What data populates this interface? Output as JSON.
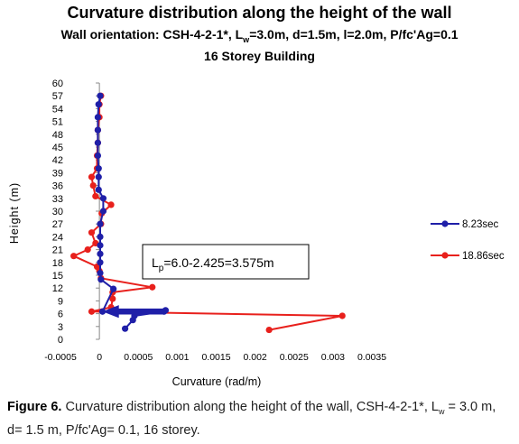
{
  "title": "Curvature distribution along the height of the wall",
  "subtitle_prefix": "Wall orientation: CSH-4-2-1*, L",
  "subtitle_sub": "w",
  "subtitle_suffix": "=3.0m, d=1.5m, l=2.0m, P/fc'Ag=0.1",
  "subtitle2": "16 Storey Building",
  "annotation_prefix": "L",
  "annotation_sub": "p",
  "annotation_suffix": "=6.0-2.425=3.575m",
  "caption": {
    "label": "Figure 6.",
    "text_a": " Curvature distribution along the height of the wall, CSH-4-2-1*, L",
    "text_sub": "w",
    "text_b": " = 3.0 m, d= 1.5 m, P/fc'Ag= 0.1, 16 storey."
  },
  "colors": {
    "series1": "#1f1fa8",
    "series2": "#e8201c"
  },
  "chart_data": {
    "type": "line",
    "xlabel": "Curvature (rad/m)",
    "ylabel": "Height (m)",
    "xlim": [
      -0.0005,
      0.0035
    ],
    "ylim": [
      0,
      60
    ],
    "xticks": [
      "-0.0005",
      "0",
      "0.0005",
      "0.001",
      "0.0015",
      "0.002",
      "0.0025",
      "0.003",
      "0.0035"
    ],
    "yticks": [
      "0",
      "3",
      "6",
      "9",
      "12",
      "15",
      "18",
      "21",
      "24",
      "27",
      "30",
      "33",
      "36",
      "39",
      "42",
      "45",
      "48",
      "51",
      "54",
      "57",
      "60"
    ],
    "grid": false,
    "legend_position": "right",
    "series": [
      {
        "name": "8.23sec",
        "points": [
          [
            0.00033,
            2.5
          ],
          [
            0.00043,
            4.5
          ],
          [
            0.00045,
            5.5
          ],
          [
            0.00083,
            6.5
          ],
          [
            0.00085,
            6.8
          ],
          [
            4e-05,
            6.5
          ],
          [
            0.00018,
            11.8
          ],
          [
            2e-05,
            14
          ],
          [
            1e-05,
            15.5
          ],
          [
            1e-05,
            18
          ],
          [
            1e-05,
            20
          ],
          [
            1e-05,
            22
          ],
          [
            1e-05,
            24
          ],
          [
            1e-05,
            27
          ],
          [
            5e-05,
            30
          ],
          [
            5e-05,
            33
          ],
          [
            -1e-05,
            35
          ],
          [
            -1e-05,
            38
          ],
          [
            -1e-05,
            40
          ],
          [
            -2e-05,
            43
          ],
          [
            -2e-05,
            46
          ],
          [
            -2e-05,
            49
          ],
          [
            -2e-05,
            52
          ],
          [
            -1e-05,
            55
          ],
          [
            1e-05,
            57
          ]
        ]
      },
      {
        "name": "18.86sec",
        "points": [
          [
            0.00218,
            2.2
          ],
          [
            0.00312,
            5.5
          ],
          [
            -0.0001,
            6.5
          ],
          [
            0.00015,
            7.5
          ],
          [
            0.00017,
            9.5
          ],
          [
            0.00017,
            11
          ],
          [
            0.00068,
            12.2
          ],
          [
            2e-05,
            14.3
          ],
          [
            0.0,
            16
          ],
          [
            -3e-05,
            17
          ],
          [
            -0.00033,
            19.5
          ],
          [
            -0.00015,
            21
          ],
          [
            -5e-05,
            22.5
          ],
          [
            -0.0001,
            25
          ],
          [
            2e-05,
            27
          ],
          [
            3e-05,
            29.5
          ],
          [
            0.00015,
            31.5
          ],
          [
            -5e-05,
            33.5
          ],
          [
            -8e-05,
            36
          ],
          [
            -0.0001,
            38
          ],
          [
            -3e-05,
            40
          ],
          [
            -3e-05,
            43
          ],
          [
            -2e-05,
            46
          ],
          [
            -2e-05,
            49
          ],
          [
            0.0,
            52
          ],
          [
            0.0,
            55
          ],
          [
            2e-05,
            57
          ]
        ]
      }
    ]
  }
}
